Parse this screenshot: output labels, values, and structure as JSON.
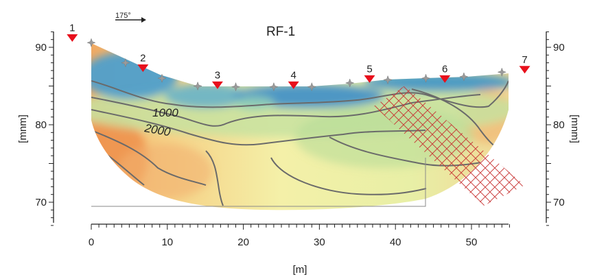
{
  "title": "RF-1",
  "x_axis": {
    "label": "[m]",
    "ticks": [
      0,
      10,
      20,
      30,
      40,
      50
    ],
    "range": [
      0,
      55
    ]
  },
  "y_axis": {
    "label": "[mnm]",
    "ticks": [
      70,
      80,
      90
    ],
    "range": [
      67,
      92
    ]
  },
  "direction": {
    "label": "175°"
  },
  "contour_labels": [
    "1000",
    "2000"
  ],
  "markers": [
    {
      "label": "1",
      "x": -2.5,
      "y": 91.2
    },
    {
      "label": "2",
      "x": 6.8,
      "y": 87.3
    },
    {
      "label": "3",
      "x": 16.6,
      "y": 85.1
    },
    {
      "label": "4",
      "x": 26.6,
      "y": 85.1
    },
    {
      "label": "5",
      "x": 36.6,
      "y": 85.9
    },
    {
      "label": "6",
      "x": 46.5,
      "y": 85.9
    },
    {
      "label": "7",
      "x": 57.0,
      "y": 87.1
    }
  ],
  "electrodes": [
    {
      "x": 0,
      "y": 90.6
    },
    {
      "x": 4.5,
      "y": 88.0
    },
    {
      "x": 9.3,
      "y": 86.0
    },
    {
      "x": 14.0,
      "y": 85.0
    },
    {
      "x": 19.0,
      "y": 84.9
    },
    {
      "x": 24.0,
      "y": 84.9
    },
    {
      "x": 29.0,
      "y": 84.9
    },
    {
      "x": 34.0,
      "y": 85.4
    },
    {
      "x": 39.0,
      "y": 85.8
    },
    {
      "x": 44.0,
      "y": 86.0
    },
    {
      "x": 49.0,
      "y": 86.2
    },
    {
      "x": 54.0,
      "y": 86.8
    }
  ],
  "colors": {
    "marker": "#e8101c",
    "electrode": "#9a9a9a",
    "hatch": "#c83232",
    "contour": "#6a6a6a"
  }
}
